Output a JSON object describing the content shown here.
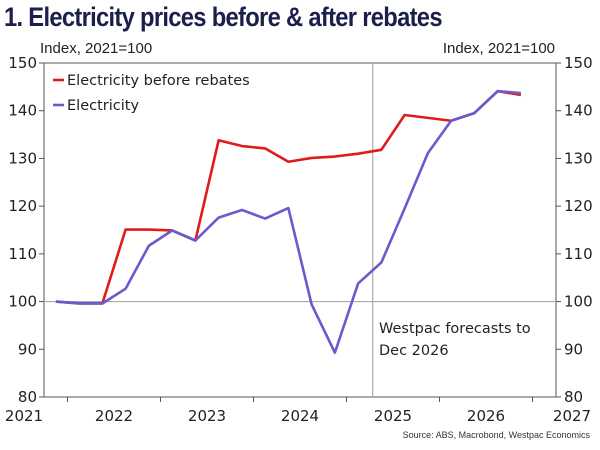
{
  "title": "1. Electricity prices before & after rebates",
  "left_unit": "Index, 2021=100",
  "right_unit": "Index, 2021=100",
  "source": "Source: ABS, Macrobond, Westpac Economics",
  "chart_data": {
    "type": "line",
    "title": "1. Electricity prices before & after rebates",
    "xlabel": "",
    "ylabel": "Index, 2021=100",
    "ylim": [
      80,
      150
    ],
    "yticks": [
      80,
      90,
      100,
      110,
      120,
      130,
      140,
      150
    ],
    "xlim": [
      2021.3,
      2026.85
    ],
    "xticks": [
      "2021",
      "2022",
      "2023",
      "2024",
      "2025",
      "2026",
      "2027"
    ],
    "x": [
      "Jun-21",
      "Sep-21",
      "Dec-21",
      "Mar-22",
      "Jun-22",
      "Sep-22",
      "Dec-22",
      "Mar-23",
      "Jun-23",
      "Sep-23",
      "Dec-23",
      "Mar-24",
      "Jun-24",
      "Sep-24",
      "Dec-24",
      "Mar-25",
      "Jun-25",
      "Sep-25",
      "Dec-25",
      "Mar-26",
      "Jun-26"
    ],
    "x_numeric": [
      2021.375,
      2021.625,
      2021.875,
      2022.125,
      2022.375,
      2022.625,
      2022.875,
      2023.125,
      2023.375,
      2023.625,
      2023.875,
      2024.125,
      2024.375,
      2024.625,
      2024.875,
      2025.125,
      2025.375,
      2025.625,
      2025.875,
      2026.125,
      2026.375
    ],
    "series": [
      {
        "name": "Electricity before rebates",
        "color": "#e01b1b",
        "values": [
          100.0,
          99.6,
          99.6,
          115.1,
          115.1,
          114.9,
          112.8,
          133.8,
          132.6,
          132.1,
          129.3,
          130.1,
          130.4,
          131.0,
          131.8,
          139.1,
          138.5,
          137.9,
          139.5,
          144.1,
          143.3
        ]
      },
      {
        "name": "Electricity",
        "color": "#6a5acd",
        "values": [
          100.0,
          99.6,
          99.6,
          102.7,
          111.7,
          114.9,
          112.8,
          117.6,
          119.2,
          117.4,
          119.6,
          99.4,
          89.3,
          103.8,
          108.2,
          119.5,
          131.1,
          137.9,
          139.5,
          144.1,
          143.7
        ]
      }
    ],
    "reference_line_y": 100,
    "forecast_start": 2024.75,
    "annotation": [
      "Westpac forecasts to",
      "Dec 2026"
    ],
    "legend": "top-left",
    "grid": false
  }
}
